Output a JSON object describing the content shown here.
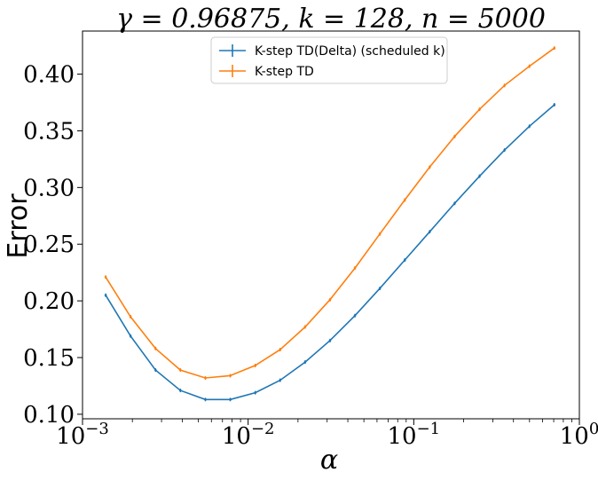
{
  "chart_data": {
    "type": "line",
    "title": "γ = 0.96875, k = 128, n = 5000",
    "xlabel": "α",
    "ylabel": "Error",
    "xscale": "log",
    "xlim": [
      0.001,
      1.0
    ],
    "ylim": [
      0.096,
      0.438
    ],
    "xticks": [
      {
        "value": 0.001,
        "base": "10",
        "exp": "−3"
      },
      {
        "value": 0.01,
        "base": "10",
        "exp": "−2"
      },
      {
        "value": 0.1,
        "base": "10",
        "exp": "−1"
      },
      {
        "value": 1.0,
        "base": "10",
        "exp": "0"
      }
    ],
    "yticks": [
      {
        "value": 0.1,
        "label": "0.10"
      },
      {
        "value": 0.15,
        "label": "0.15"
      },
      {
        "value": 0.2,
        "label": "0.20"
      },
      {
        "value": 0.25,
        "label": "0.25"
      },
      {
        "value": 0.3,
        "label": "0.30"
      },
      {
        "value": 0.35,
        "label": "0.35"
      },
      {
        "value": 0.4,
        "label": "0.40"
      }
    ],
    "legend_position": "top-center",
    "grid": false,
    "series": [
      {
        "name": "K-step TD(Delta) (scheduled k)",
        "color": "#1f77b4",
        "x": [
          0.00138,
          0.00195,
          0.00276,
          0.0039,
          0.00552,
          0.0078,
          0.01104,
          0.0156,
          0.02208,
          0.03121,
          0.04415,
          0.06243,
          0.0883,
          0.12486,
          0.1766,
          0.24972,
          0.35319,
          0.49944,
          0.70639
        ],
        "values": [
          0.205,
          0.169,
          0.139,
          0.121,
          0.113,
          0.113,
          0.119,
          0.13,
          0.146,
          0.165,
          0.187,
          0.211,
          0.236,
          0.261,
          0.286,
          0.31,
          0.333,
          0.354,
          0.373
        ]
      },
      {
        "name": "K-step TD",
        "color": "#ff7f0e",
        "x": [
          0.00138,
          0.00195,
          0.00276,
          0.0039,
          0.00552,
          0.0078,
          0.01104,
          0.0156,
          0.02208,
          0.03121,
          0.04415,
          0.06243,
          0.0883,
          0.12486,
          0.1766,
          0.24972,
          0.35319,
          0.49944,
          0.70639
        ],
        "values": [
          0.221,
          0.186,
          0.158,
          0.139,
          0.132,
          0.134,
          0.143,
          0.157,
          0.177,
          0.201,
          0.229,
          0.259,
          0.289,
          0.318,
          0.345,
          0.369,
          0.39,
          0.407,
          0.423
        ]
      }
    ]
  }
}
